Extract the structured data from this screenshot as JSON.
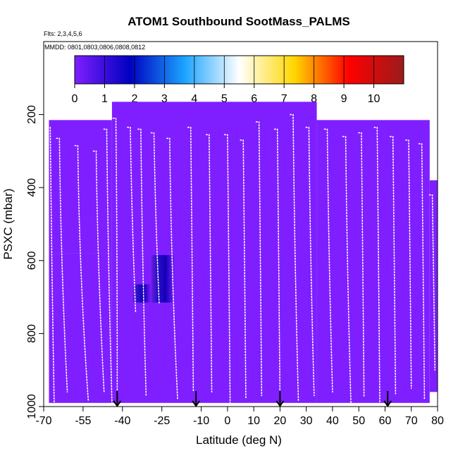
{
  "chart_data": {
    "type": "heatmap",
    "title": "ATOM1 Southbound SootMass_PALMS",
    "flights_note": "Flts: 2,3,4,5,6",
    "dates_note": "MMDD: 0801,0803,0806,0808,0812",
    "xlabel": "Latitude (deg N)",
    "ylabel": "PSXC (mbar)",
    "xlim": [
      -70,
      80
    ],
    "ylim": [
      1000,
      0
    ],
    "x_ticks": [
      -70,
      -55,
      -40,
      -25,
      -10,
      0,
      10,
      20,
      30,
      40,
      50,
      60,
      70,
      80
    ],
    "y_ticks": [
      200,
      400,
      600,
      800,
      1000
    ],
    "colorbar": {
      "min": 0,
      "max": 11,
      "ticks": [
        0,
        1,
        2,
        3,
        4,
        5,
        6,
        7,
        8,
        9,
        10
      ],
      "colors": [
        "#7f1fff",
        "#0000c0",
        "#1aa3ff",
        "#ffffff",
        "#ffd700",
        "#ff0000",
        "#9b1b1b"
      ]
    },
    "fill_color": "#7f1fff",
    "field_regions": [
      {
        "lat": [
          -68,
          -44
        ],
        "p": [
          215,
          580
        ],
        "value": 0.3
      },
      {
        "lat": [
          -44,
          34
        ],
        "p": [
          165,
          990
        ],
        "value": 0.3
      },
      {
        "lat": [
          34,
          77
        ],
        "p": [
          215,
          990
        ],
        "value": 0.3
      },
      {
        "lat": [
          -68,
          -44
        ],
        "p": [
          580,
          990
        ],
        "value": 0.3
      },
      {
        "lat": [
          77,
          80
        ],
        "p": [
          380,
          960
        ],
        "value": 0.3
      }
    ],
    "enhanced_regions": [
      {
        "lat": [
          -29,
          -20
        ],
        "p": [
          585,
          715
        ],
        "value": 1.4
      },
      {
        "lat": [
          -36,
          -29
        ],
        "p": [
          665,
          715
        ],
        "value": 1.4
      }
    ],
    "profiles": [
      {
        "lat_top": -67.5,
        "lat_bottom": -66,
        "p_top": 235,
        "p_bottom": 990
      },
      {
        "lat_top": -64,
        "lat_bottom": -61,
        "p_top": 265,
        "p_bottom": 960
      },
      {
        "lat_top": -57,
        "lat_bottom": -53,
        "p_top": 285,
        "p_bottom": 985
      },
      {
        "lat_top": -50,
        "lat_bottom": -47,
        "p_top": 300,
        "p_bottom": 960
      },
      {
        "lat_top": -46,
        "lat_bottom": -44,
        "p_top": 240,
        "p_bottom": 990
      },
      {
        "lat_top": -42.5,
        "lat_bottom": -42,
        "p_top": 210,
        "p_bottom": 975
      },
      {
        "lat_top": -37,
        "lat_bottom": -35,
        "p_top": 235,
        "p_bottom": 740
      },
      {
        "lat_top": -33,
        "lat_bottom": -31,
        "p_top": 240,
        "p_bottom": 970
      },
      {
        "lat_top": -28,
        "lat_bottom": -26,
        "p_top": 250,
        "p_bottom": 720
      },
      {
        "lat_top": -22,
        "lat_bottom": -19,
        "p_top": 265,
        "p_bottom": 980
      },
      {
        "lat_top": -14,
        "lat_bottom": -13,
        "p_top": 235,
        "p_bottom": 960
      },
      {
        "lat_top": -7,
        "lat_bottom": -6,
        "p_top": 255,
        "p_bottom": 960
      },
      {
        "lat_top": 0,
        "lat_bottom": 1,
        "p_top": 255,
        "p_bottom": 990
      },
      {
        "lat_top": 6,
        "lat_bottom": 7,
        "p_top": 270,
        "p_bottom": 980
      },
      {
        "lat_top": 12,
        "lat_bottom": 13,
        "p_top": 220,
        "p_bottom": 970
      },
      {
        "lat_top": 19,
        "lat_bottom": 20,
        "p_top": 240,
        "p_bottom": 990
      },
      {
        "lat_top": 25,
        "lat_bottom": 27,
        "p_top": 200,
        "p_bottom": 985
      },
      {
        "lat_top": 31,
        "lat_bottom": 33,
        "p_top": 235,
        "p_bottom": 970
      },
      {
        "lat_top": 38,
        "lat_bottom": 40,
        "p_top": 240,
        "p_bottom": 960
      },
      {
        "lat_top": 45,
        "lat_bottom": 47,
        "p_top": 260,
        "p_bottom": 990
      },
      {
        "lat_top": 51,
        "lat_bottom": 52,
        "p_top": 250,
        "p_bottom": 975
      },
      {
        "lat_top": 57,
        "lat_bottom": 58,
        "p_top": 235,
        "p_bottom": 990
      },
      {
        "lat_top": 63,
        "lat_bottom": 64,
        "p_top": 260,
        "p_bottom": 965
      },
      {
        "lat_top": 69,
        "lat_bottom": 70,
        "p_top": 270,
        "p_bottom": 950
      },
      {
        "lat_top": 74,
        "lat_bottom": 75,
        "p_top": 280,
        "p_bottom": 980
      },
      {
        "lat_top": 78,
        "lat_bottom": 79,
        "p_top": 420,
        "p_bottom": 900
      }
    ],
    "arrows_lat": [
      -42,
      -12,
      20,
      61
    ]
  }
}
